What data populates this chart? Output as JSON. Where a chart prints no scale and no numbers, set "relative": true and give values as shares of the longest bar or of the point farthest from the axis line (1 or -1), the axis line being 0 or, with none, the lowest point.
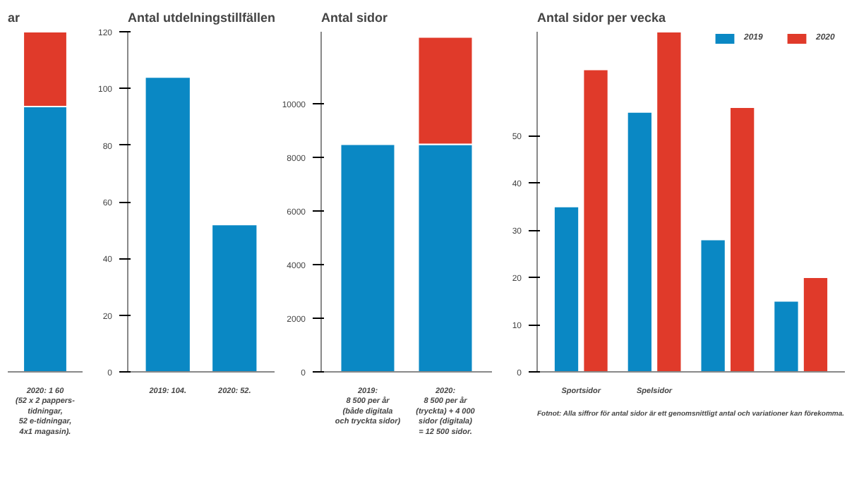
{
  "chart_data": [
    {
      "type": "bar",
      "title": "ar",
      "relative": true,
      "stacked": true,
      "categories": [
        "2020: 1 60\n(52 x 2 pappers-\ntidningar,\n52 e-tidningar,\n4x1 magasin)."
      ],
      "series": [
        {
          "color": "#0a88c4",
          "values": [
            0.78
          ]
        },
        {
          "color": "#e03a2a",
          "values": [
            0.22
          ]
        }
      ]
    },
    {
      "type": "bar",
      "title": "Antal utdelningstillfällen",
      "categories": [
        "2019: 104.",
        "2020: 52."
      ],
      "values": [
        104,
        52
      ],
      "color": "#0a88c4",
      "ylim": [
        0,
        120
      ],
      "yticks": [
        0,
        20,
        40,
        60,
        80,
        100,
        120
      ]
    },
    {
      "type": "bar",
      "title": "Antal sidor",
      "stacked": true,
      "categories": [
        "2019:\n8 500 per år\n(både digitala\noch tryckta sidor)",
        "2020:\n8 500 per år\n(tryckta) + 4 000\nsidor (digitala)\n= 12 500 sidor."
      ],
      "series": [
        {
          "color": "#0a88c4",
          "values": [
            8500,
            8500
          ]
        },
        {
          "color": "#e03a2a",
          "values": [
            null,
            4000
          ]
        }
      ],
      "ylim": [
        0,
        12700
      ],
      "yticks": [
        0,
        2000,
        4000,
        6000,
        8000,
        10000
      ]
    },
    {
      "type": "bar",
      "title": "Antal sidor per vecka",
      "categories": [
        "Sportsidor",
        "Spelsidor",
        null,
        null
      ],
      "legend": "top",
      "series": [
        {
          "name": "2019",
          "color": "#0a88c4",
          "values": [
            35,
            55,
            28,
            15
          ]
        },
        {
          "name": "2020",
          "color": "#e03a2a",
          "values": [
            64,
            72,
            56,
            20
          ]
        }
      ],
      "ylim": [
        0,
        72
      ],
      "yticks": [
        0,
        10,
        20,
        30,
        40,
        50
      ],
      "annotations": [
        "Fotnot: Alla siffror för antal sidor är ett genomsnittligt antal och variationer kan förekomma."
      ]
    }
  ]
}
